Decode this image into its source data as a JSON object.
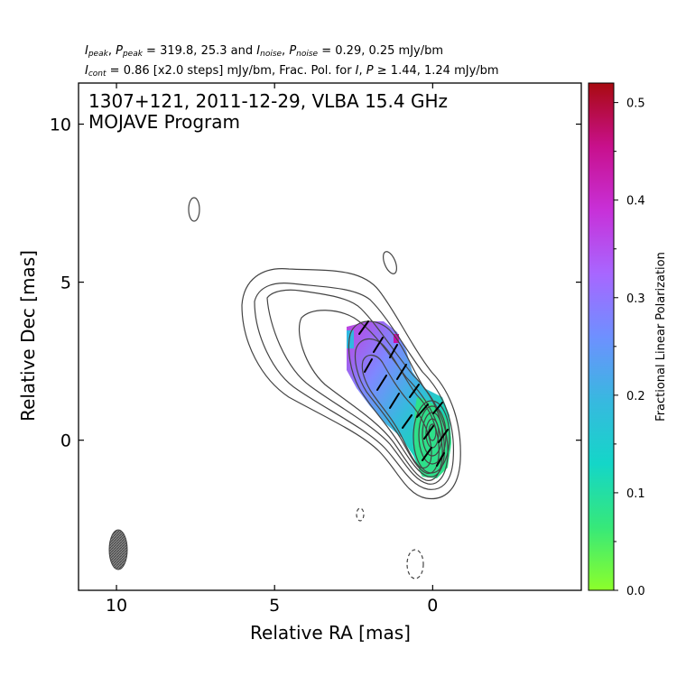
{
  "header": {
    "peak_values": "319.8, 25.3",
    "noise_values": "0.29, 0.25 mJy/bm",
    "cont_value": "0.86 [x2.0 steps] mJy/bm",
    "frac_threshold": "1.44, 1.24 mJy/bm"
  },
  "chart_data": {
    "type": "contour",
    "title": "1307+121, 2011-12-29, VLBA 15.4 GHz",
    "subtitle": "MOJAVE Program",
    "xlabel": "Relative RA [mas]",
    "ylabel": "Relative Dec [mas]",
    "xlim": [
      11.2,
      -4.7
    ],
    "ylim": [
      -4.75,
      11.3
    ],
    "xticks": [
      10,
      5,
      0
    ],
    "yticks": [
      10,
      5,
      0
    ],
    "colorbar": {
      "label": "Fractional Linear Polarization",
      "range": [
        0.0,
        0.52
      ],
      "ticks": [
        0.0,
        0.1,
        0.2,
        0.3,
        0.4,
        0.5
      ],
      "tick_labels": [
        "0.0",
        "0.1",
        "0.2",
        "0.3",
        "0.4",
        "0.5"
      ],
      "colors": [
        "#8cff2a",
        "#36e87a",
        "#14d6c8",
        "#38b8e0",
        "#6e90ff",
        "#a866ff",
        "#c830d8",
        "#c8108c",
        "#a80a10"
      ]
    },
    "stokes_I": {
      "peak_mJy_per_beam": 319.8,
      "noise_mJy_per_beam": 0.29,
      "lowest_contour_mJy_per_beam": 0.86,
      "contour_step_factor": 2.0
    },
    "polarization": {
      "peak_mJy_per_beam": 25.3,
      "noise_mJy_per_beam": 0.25,
      "I_threshold_mJy_per_beam": 1.44,
      "P_threshold_mJy_per_beam": 1.24
    },
    "core": {
      "ra": 0.0,
      "dec": 0.0
    },
    "beam": {
      "ra": 9.9,
      "dec": -3.5,
      "major_mas": 1.2,
      "minor_mas": 0.55,
      "pa_deg": 0
    },
    "jet_direction": "north-east",
    "grid": false
  }
}
